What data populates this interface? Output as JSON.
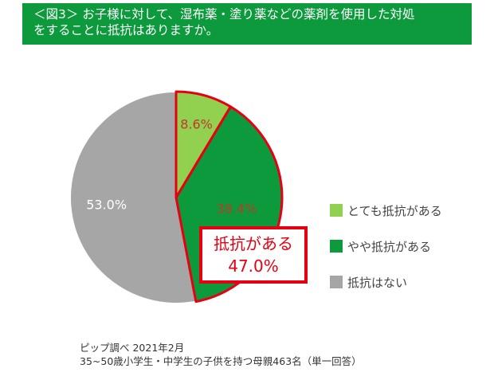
{
  "header": {
    "line1": "＜図3＞ お子様に対して、湿布薬・塗り薬などの薬剤を使用した対処",
    "line2": "をすることに抵抗はありますか。"
  },
  "chart_data": {
    "type": "pie",
    "slices": [
      {
        "name": "とても抵抗がある",
        "value": 8.6,
        "label": "8.6%",
        "color": "#92d050",
        "label_color": "#c0392b"
      },
      {
        "name": "やや抵抗がある",
        "value": 38.4,
        "label": "38.4%",
        "color": "#0c9a3c",
        "label_color": "#c0392b"
      },
      {
        "name": "抵抗はない",
        "value": 53.0,
        "label": "53.0%",
        "color": "#a6a6a6",
        "label_color": "#ffffff"
      }
    ],
    "highlight": {
      "line1": "抵抗がある",
      "line2": "47.0%",
      "color": "#e60012"
    },
    "legend_position": "right"
  },
  "source": {
    "line1": "ピップ調べ 2021年2月",
    "line2": "35~50歳小学生・中学生の子供を持つ母親463名（単一回答）"
  }
}
